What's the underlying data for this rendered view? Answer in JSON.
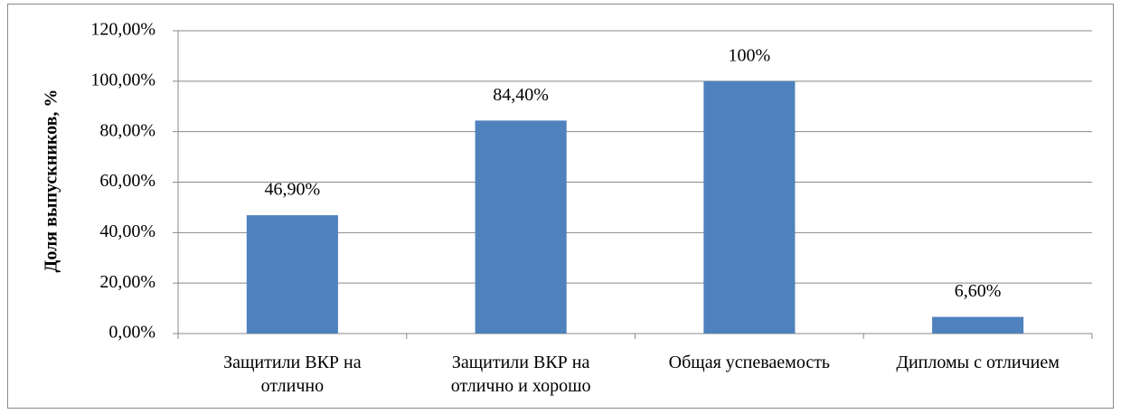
{
  "chart_data": {
    "type": "bar",
    "y_label": "Доля выпускников, %",
    "categories": [
      "Защитили ВКР на\nотлично",
      "Защитили ВКР на\nотлично и хорошо",
      "Общая успеваемость",
      "Дипломы с отличием"
    ],
    "values": [
      46.9,
      84.4,
      100,
      6.6
    ],
    "value_labels": [
      "46,90%",
      "84,40%",
      "100%",
      "6,60%"
    ],
    "color": "#4f81bd",
    "ylim": [
      0,
      120
    ],
    "yticks": [
      {
        "value": 0,
        "label": "0,00%"
      },
      {
        "value": 20,
        "label": "20,00%"
      },
      {
        "value": 40,
        "label": "40,00%"
      },
      {
        "value": 60,
        "label": "60,00%"
      },
      {
        "value": 80,
        "label": "80,00%"
      },
      {
        "value": 100,
        "label": "100,00%"
      },
      {
        "value": 120,
        "label": "120,00%"
      }
    ],
    "grid": true
  }
}
